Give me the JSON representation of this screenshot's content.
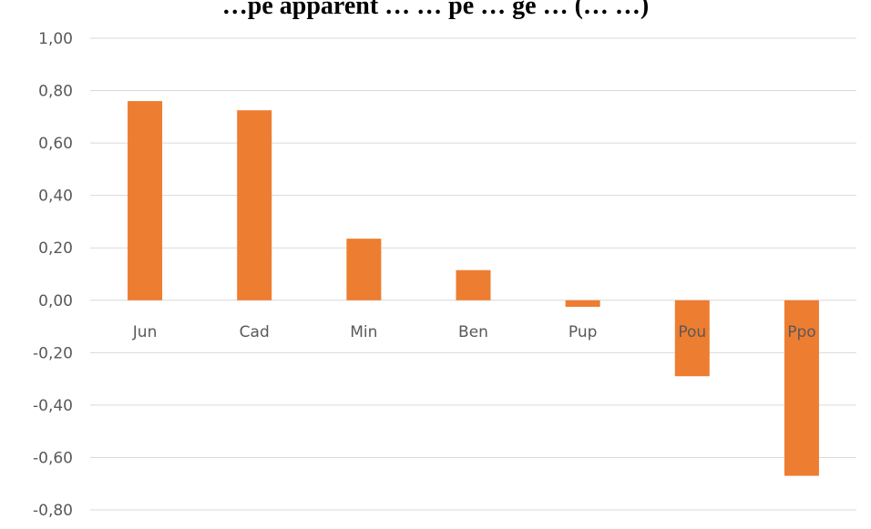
{
  "chart_data": {
    "type": "bar",
    "title": "…pe apparent … … pe … ge … (… …)",
    "categories": [
      "Jun",
      "Cad",
      "Min",
      "Ben",
      "Pup",
      "Pou",
      "Ppo"
    ],
    "series": [
      {
        "values": [
          0.76,
          0.725,
          0.235,
          0.115,
          -0.025,
          -0.29,
          -0.67
        ]
      }
    ],
    "ylim": [
      -0.8,
      1.0
    ],
    "yticks": [
      1.0,
      0.8,
      0.6,
      0.4,
      0.2,
      0.0,
      -0.2,
      -0.4,
      -0.6,
      -0.8
    ],
    "ytick_labels": [
      "1,00",
      "0,80",
      "0,60",
      "0,40",
      "0,20",
      "0,00",
      "-0,20",
      "-0,40",
      "-0,60",
      "-0,80"
    ],
    "grid": true,
    "colors": {
      "bar": "#ED7D31",
      "grid": "#D9D9D9",
      "axis": "#D9D9D9",
      "text": "#595959"
    }
  }
}
